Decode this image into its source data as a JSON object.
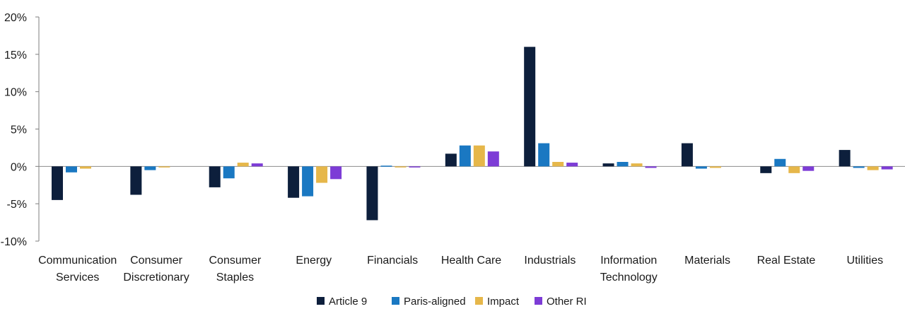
{
  "chart_data": {
    "type": "bar",
    "title": "",
    "xlabel": "",
    "ylabel": "",
    "ylim": [
      -10,
      20
    ],
    "yticks": [
      "20%",
      "15%",
      "10%",
      "5%",
      "0%",
      "-5%",
      "-10%"
    ],
    "ytick_values": [
      20,
      15,
      10,
      5,
      0,
      -5,
      -10
    ],
    "legend_position": "bottom",
    "categories": [
      [
        "Communication",
        "Services"
      ],
      [
        "Consumer",
        "Discretionary"
      ],
      [
        "Consumer",
        "Staples"
      ],
      [
        "Energy"
      ],
      [
        "Financials"
      ],
      [
        "Health Care"
      ],
      [
        "Industrials"
      ],
      [
        "Information",
        "Technology"
      ],
      [
        "Materials"
      ],
      [
        "Real Estate"
      ],
      [
        "Utilities"
      ]
    ],
    "series": [
      {
        "name": "Article 9",
        "color": "#0d1f3c",
        "values": [
          -4.5,
          -3.8,
          -2.8,
          -4.2,
          -7.2,
          1.7,
          16.0,
          0.4,
          3.1,
          -0.9,
          2.2
        ]
      },
      {
        "name": "Paris-aligned",
        "color": "#1a78c2",
        "values": [
          -0.8,
          -0.5,
          -1.6,
          -4.0,
          0.1,
          2.8,
          3.1,
          0.6,
          -0.3,
          1.0,
          -0.2
        ]
      },
      {
        "name": "Impact",
        "color": "#e6b74a",
        "values": [
          -0.3,
          -0.1,
          0.5,
          -2.2,
          -0.1,
          2.8,
          0.6,
          0.4,
          -0.2,
          -0.9,
          -0.5
        ]
      },
      {
        "name": "Other RI",
        "color": "#7d3cd6",
        "values": [
          0.0,
          0.0,
          0.4,
          -1.7,
          -0.1,
          2.0,
          0.5,
          -0.2,
          0.0,
          -0.6,
          -0.4
        ]
      }
    ]
  }
}
